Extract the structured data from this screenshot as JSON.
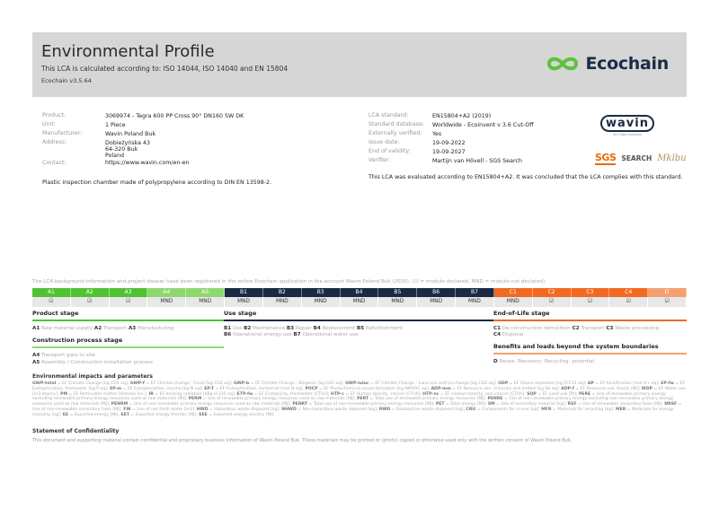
{
  "header": {
    "title": "Environmental Profile",
    "subtitle": "This LCA is calculated according to: ISO 14044, ISO 14040 and EN 15804",
    "version": "Ecochain v3.5.64",
    "logo_text": "Ecochain",
    "logo_color": "#5cc43c"
  },
  "product_info": [
    {
      "label": "Product:",
      "value": "3069974 - Tegra 600 PP Cross 90° DN160 SW DK"
    },
    {
      "label": "Unit:",
      "value": "1 Piece"
    },
    {
      "label": "Manufacturer:",
      "value": "Wavin Poland Buk"
    },
    {
      "label": "Address:",
      "value": "Dobieżyńska 43\n64-320 Buk\nPoland"
    },
    {
      "label": "Contact:",
      "value": "https://www.wavin.com/en-en"
    }
  ],
  "description": "Plastic inspection chamber made of polypropylene according to DIN EN 13598-2.",
  "lca_info": [
    {
      "label": "LCA standard:",
      "value": "EN15804+A2 (2019)"
    },
    {
      "label": "Standard database:",
      "value": "Worldwide - Ecoinvent v 3.6 Cut-Off"
    },
    {
      "label": "Externally verified:",
      "value": "Yes"
    },
    {
      "label": "Issue date:",
      "value": "19-09-2022"
    },
    {
      "label": "End of validity:",
      "value": "19-09-2027"
    },
    {
      "label": "Verifier:",
      "value": "Martijn van Hövell - SGS Search"
    }
  ],
  "evaluation": "This LCA was evaluated according to EN15804+A2. It was concluded that the LCA complies with this standard.",
  "logos": {
    "wavin": "wavin",
    "wavin_sub": "An Orbia business",
    "sgs": "SGS",
    "search": "SEARCH",
    "signature": "Mklbu"
  },
  "registration": "The LCA background information and project dossier have been registered in the online Ecochain application in the account Wavin Poland Buk (2020). (☑ = module declared, MND = module not declared).",
  "modules": [
    {
      "code": "A1",
      "value": "☑",
      "color": "#52c234"
    },
    {
      "code": "A2",
      "value": "☑",
      "color": "#52c234"
    },
    {
      "code": "A3",
      "value": "☑",
      "color": "#52c234"
    },
    {
      "code": "A4",
      "value": "MND",
      "color": "#8fd870"
    },
    {
      "code": "A5",
      "value": "MND",
      "color": "#8fd870"
    },
    {
      "code": "B1",
      "value": "MND",
      "color": "#1b2a44"
    },
    {
      "code": "B2",
      "value": "MND",
      "color": "#1b2a44"
    },
    {
      "code": "B3",
      "value": "MND",
      "color": "#1b2a44"
    },
    {
      "code": "B4",
      "value": "MND",
      "color": "#1b2a44"
    },
    {
      "code": "B5",
      "value": "MND",
      "color": "#1b2a44"
    },
    {
      "code": "B6",
      "value": "MND",
      "color": "#1b2a44"
    },
    {
      "code": "B7",
      "value": "MND",
      "color": "#1b2a44"
    },
    {
      "code": "C1",
      "value": "MND",
      "color": "#f26a21"
    },
    {
      "code": "C2",
      "value": "☑",
      "color": "#f26a21"
    },
    {
      "code": "C3",
      "value": "☑",
      "color": "#f26a21"
    },
    {
      "code": "C4",
      "value": "☑",
      "color": "#f26a21"
    },
    {
      "code": "D",
      "value": "☑",
      "color": "#f5a070"
    }
  ],
  "stages": {
    "product": {
      "title": "Product stage",
      "mods": [
        [
          "A1",
          "Raw material supply"
        ],
        [
          "A2",
          "Transport"
        ],
        [
          "A3",
          "Manufacturing"
        ]
      ]
    },
    "construction": {
      "title": "Construction process stage",
      "mods": [
        [
          "A4",
          "Transport gate to site"
        ],
        [
          "A5",
          "Assembly / Construction installation process"
        ]
      ]
    },
    "use": {
      "title": "Use stage",
      "mods": [
        [
          "B1",
          "Use"
        ],
        [
          "B2",
          "Maintenance"
        ],
        [
          "B3",
          "Repair"
        ],
        [
          "B4",
          "Replacement"
        ],
        [
          "B5",
          "Refurbishment"
        ],
        [
          "B6",
          "Operational energy use"
        ],
        [
          "B7",
          "Operational water use"
        ]
      ]
    },
    "eol": {
      "title": "End-of-Life stage",
      "mods": [
        [
          "C1",
          "De-construction demolition"
        ],
        [
          "C2",
          "Transport"
        ],
        [
          "C3",
          "Waste processing"
        ],
        [
          "C4",
          "Disposal"
        ]
      ]
    },
    "beyond": {
      "title": "Benefits and loads beyond the system boundaries",
      "mods": [
        [
          "D",
          "Reuse- Recovery- Recycling- potential"
        ]
      ]
    }
  },
  "env": {
    "heading": "Environmental impacts and parameters",
    "params": [
      [
        "GWP-total",
        "EF Climate Change [kg CO2 eq]"
      ],
      [
        "GWP-f",
        "EF Climate change - Fossil [kg CO2 eq]"
      ],
      [
        "GWP-b",
        "EF Climate Change - Biogenic [kg CO2 eq]"
      ],
      [
        "GWP-luluc",
        "EF Climate Change - Land use and LU change [kg CO2 eq]"
      ],
      [
        "ODP",
        "EF Ozone depletion [kg CFC11 eq]"
      ],
      [
        "AP",
        "EF Acidification [mol H+ eq]"
      ],
      [
        "EP-fw",
        "EF Eutrophication, freshwater [kg P eq]"
      ],
      [
        "EP-m",
        "EF Eutrophication, marine [kg N eq]"
      ],
      [
        "EP-T",
        "EF Eutrophication, terrestrial [mol N eq]"
      ],
      [
        "POCP",
        "EF Photochemical ozone formation [kg NMVOC eq]"
      ],
      [
        "ADP-mm",
        "EF Resource use, minerals and metals [kg Sb eq]"
      ],
      [
        "ADP-f",
        "EF Resource use, fossils [MJ]"
      ],
      [
        "WDP",
        "EF Water use [m3 depriv.]"
      ],
      [
        "PM",
        "EF Particulate matter [disease inc.]"
      ],
      [
        "IR",
        "EF Ionising radiation [kBq U-235 eq]"
      ],
      [
        "ETP-fw",
        "EF Ecotoxicity, freshwater [CTUe]"
      ],
      [
        "HTP-c",
        "EF Human toxicity, cancer [CTUh]"
      ],
      [
        "HTP-nc",
        "EF Human toxicity, non-cancer [CTUh]"
      ],
      [
        "SQP",
        "EF Land use [Pt]"
      ],
      [
        "PERE",
        "Use of renewable primary energy excluding renewable primary energy resources used as raw materials [MJ]"
      ],
      [
        "PERM",
        "Use of renewable primary energy resources used as raw materials [MJ]"
      ],
      [
        "PERT",
        "Total use of renewable primary energy resources [MJ]"
      ],
      [
        "PENRE",
        "Use of non renewable primary energy excluding non-renewable primary energy resources used as raw materials [MJ]"
      ],
      [
        "PENRM",
        "Use of non-renewable primary energy resources used as raw materials [MJ]"
      ],
      [
        "PENRT",
        "Total use of non-renewable primary energy resources [MJ]"
      ],
      [
        "PET",
        "Total energy [MJ]"
      ],
      [
        "SM",
        "Use of secondary material [kg]"
      ],
      [
        "RSF",
        "Use of renewable secondary fuels [MJ]"
      ],
      [
        "NRSF",
        "Use of non-renewable secondary fuels [MJ]"
      ],
      [
        "FW",
        "Use of net fresh water [m3]"
      ],
      [
        "HWD",
        "Hazardous waste disposed [kg]"
      ],
      [
        "NHWD",
        "Non-hazardous waste disposed [kg]"
      ],
      [
        "RWD",
        "Radioactive waste disposed [kg]"
      ],
      [
        "CRU",
        "Components for re-use [kg]"
      ],
      [
        "MFR",
        "Materials for recycling [kg]"
      ],
      [
        "MER",
        "Materials for energy recovery [kg]"
      ],
      [
        "EE",
        "Exported energy [MJ]"
      ],
      [
        "EET",
        "Exported energy thermic [MJ]"
      ],
      [
        "EEE",
        "Exported energy electric [MJ]"
      ]
    ]
  },
  "confidentiality": {
    "heading": "Statement of Confidentiality",
    "text": "This document and supporting material contain confidential and proprietary business information of Wavin Poland Buk. These materials may be printed or (photo) copied or otherwise used only with the written consent of Wavin Poland Buk."
  }
}
